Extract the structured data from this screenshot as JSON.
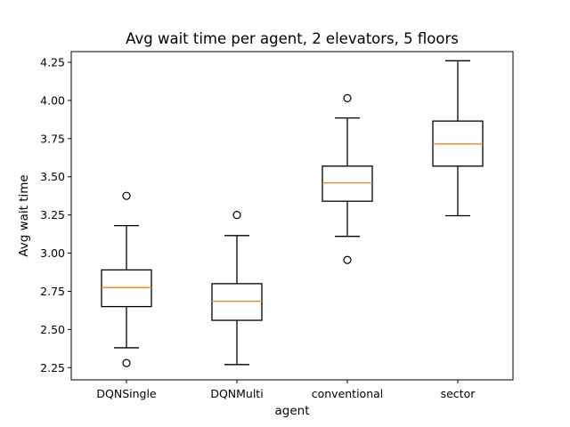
{
  "chart_data": {
    "type": "box",
    "title": "Avg wait time per agent, 2 elevators, 5 floors",
    "xlabel": "agent",
    "ylabel": "Avg wait time",
    "ylim": [
      2.17,
      4.32
    ],
    "yticks": [
      "2.25",
      "2.50",
      "2.75",
      "3.00",
      "3.25",
      "3.50",
      "3.75",
      "4.00",
      "4.25"
    ],
    "grid": false,
    "categories": [
      "DQNSingle",
      "DQNMulti",
      "conventional",
      "sector"
    ],
    "boxes": [
      {
        "whisker_low": 2.38,
        "q1": 2.65,
        "median": 2.775,
        "q3": 2.89,
        "whisker_high": 3.18,
        "outliers": [
          3.375,
          2.28
        ]
      },
      {
        "whisker_low": 2.27,
        "q1": 2.56,
        "median": 2.685,
        "q3": 2.8,
        "whisker_high": 3.115,
        "outliers": [
          3.25
        ]
      },
      {
        "whisker_low": 3.11,
        "q1": 3.34,
        "median": 3.46,
        "q3": 3.57,
        "whisker_high": 3.885,
        "outliers": [
          4.015,
          2.955
        ]
      },
      {
        "whisker_low": 3.245,
        "q1": 3.57,
        "median": 3.715,
        "q3": 3.865,
        "whisker_high": 4.26,
        "outliers": []
      }
    ],
    "colors": {
      "box": "#000000",
      "median": "#ff7f0e",
      "outlier": "#000000",
      "background": "#ffffff"
    }
  }
}
